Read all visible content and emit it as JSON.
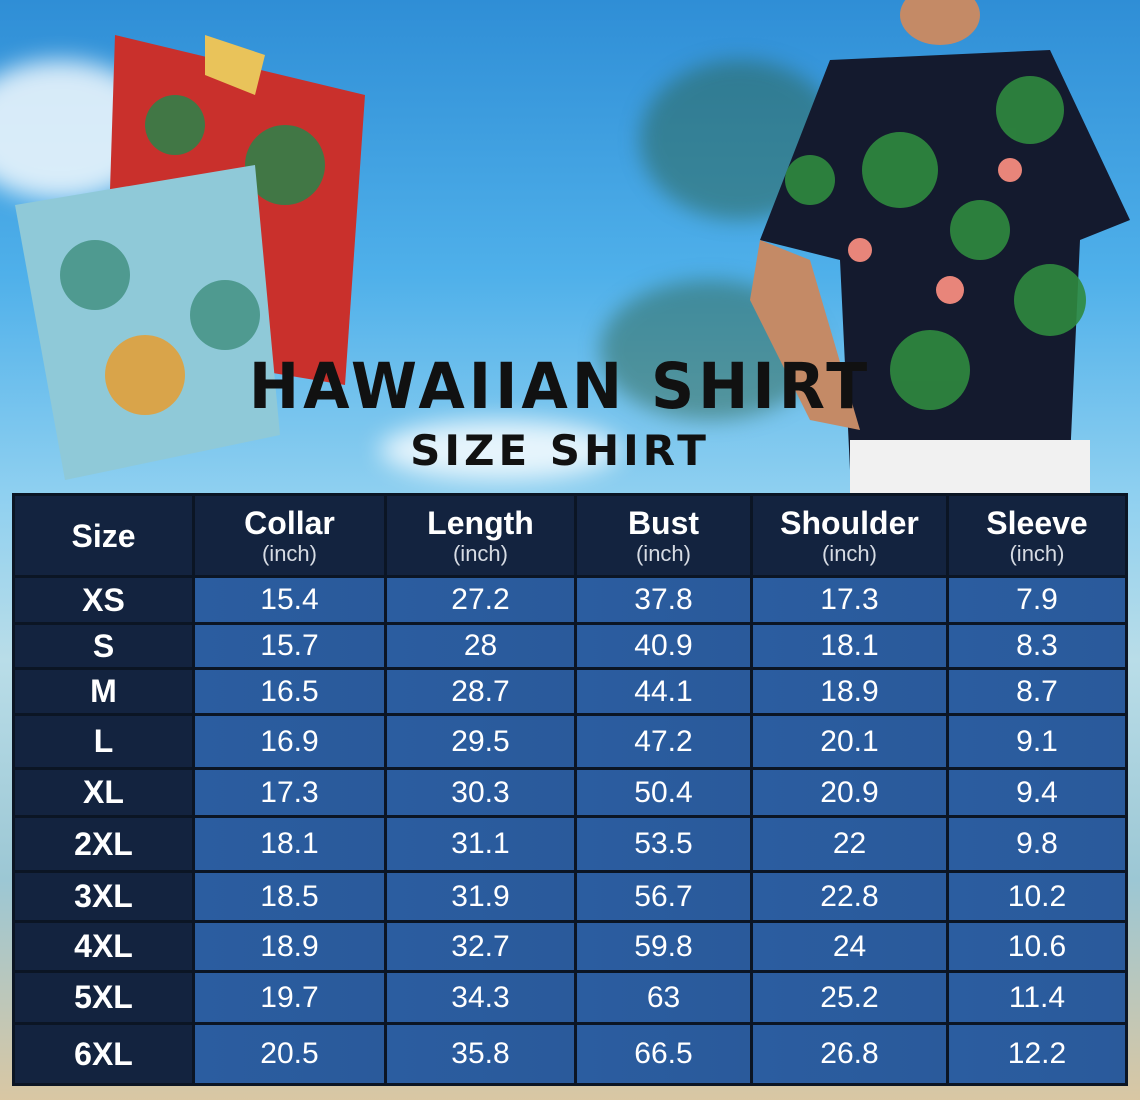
{
  "title": "HAWAIIAN SHIRT",
  "subtitle": "SIZE SHIRT",
  "table": {
    "headers": [
      {
        "label": "Size",
        "unit": ""
      },
      {
        "label": "Collar",
        "unit": "(inch)"
      },
      {
        "label": "Length",
        "unit": "(inch)"
      },
      {
        "label": "Bust",
        "unit": "(inch)"
      },
      {
        "label": "Shoulder",
        "unit": "(inch)"
      },
      {
        "label": "Sleeve",
        "unit": "(inch)"
      }
    ],
    "rows": [
      [
        "XS",
        "15.4",
        "27.2",
        "37.8",
        "17.3",
        "7.9"
      ],
      [
        "S",
        "15.7",
        "28",
        "40.9",
        "18.1",
        "8.3"
      ],
      [
        "M",
        "16.5",
        "28.7",
        "44.1",
        "18.9",
        "8.7"
      ],
      [
        "L",
        "16.9",
        "29.5",
        "47.2",
        "20.1",
        "9.1"
      ],
      [
        "XL",
        "17.3",
        "30.3",
        "50.4",
        "20.9",
        "9.4"
      ],
      [
        "2XL",
        "18.1",
        "31.1",
        "53.5",
        "22",
        "9.8"
      ],
      [
        "3XL",
        "18.5",
        "31.9",
        "56.7",
        "22.8",
        "10.2"
      ],
      [
        "4XL",
        "18.9",
        "32.7",
        "59.8",
        "24",
        "10.6"
      ],
      [
        "5XL",
        "19.7",
        "34.3",
        "63",
        "25.2",
        "11.4"
      ],
      [
        "6XL",
        "20.5",
        "35.8",
        "66.5",
        "26.8",
        "12.2"
      ]
    ]
  },
  "colors": {
    "header_bg": "#13233f",
    "cell_bg": "#2b5da0",
    "border": "#0b1524"
  }
}
